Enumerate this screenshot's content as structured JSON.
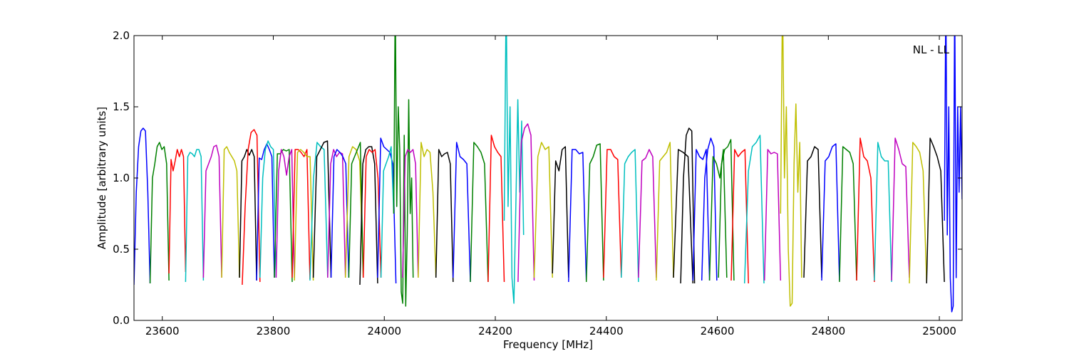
{
  "chart_data": {
    "type": "line",
    "title": "",
    "annotation": "NL - LL",
    "xlabel": "Frequency [MHz]",
    "ylabel": "Amplitude [arbitrary units]",
    "xlim": [
      23549,
      25041
    ],
    "ylim": [
      0.0,
      2.0
    ],
    "xticks": [
      23600,
      23800,
      24000,
      24200,
      24400,
      24600,
      24800,
      25000
    ],
    "xtick_labels": [
      "23600",
      "23800",
      "24000",
      "24200",
      "24400",
      "24600",
      "24800",
      "25000"
    ],
    "yticks": [
      0.0,
      0.5,
      1.0,
      1.5,
      2.0
    ],
    "ytick_labels": [
      "0.0",
      "0.5",
      "1.0",
      "1.5",
      "2.0"
    ],
    "grid": false,
    "colors": {
      "b": "#0000ff",
      "g": "#008000",
      "r": "#ff0000",
      "c": "#00bfbf",
      "m": "#bf00bf",
      "y": "#bfbf00",
      "k": "#000000"
    },
    "segments": [
      {
        "f0": 23549,
        "f1": 23578,
        "color": "b",
        "values": [
          0.25,
          0.9,
          1.22,
          1.33,
          1.35,
          1.33,
          0.9,
          0.26
        ]
      },
      {
        "f0": 23578,
        "f1": 23612,
        "color": "g",
        "values": [
          0.26,
          1.0,
          1.1,
          1.22,
          1.25,
          1.2,
          1.22,
          1.1,
          0.28
        ]
      },
      {
        "f0": 23612,
        "f1": 23642,
        "color": "r",
        "values": [
          0.33,
          1.13,
          1.05,
          1.12,
          1.2,
          1.15,
          1.2,
          1.15,
          0.34
        ]
      },
      {
        "f0": 23642,
        "f1": 23674,
        "color": "c",
        "values": [
          0.27,
          1.15,
          1.18,
          1.17,
          1.15,
          1.2,
          1.2,
          1.15,
          0.28
        ]
      },
      {
        "f0": 23674,
        "f1": 23707,
        "color": "m",
        "values": [
          0.3,
          1.05,
          1.1,
          1.15,
          1.22,
          1.23,
          1.15,
          0.3
        ]
      },
      {
        "f0": 23707,
        "f1": 23739,
        "color": "y",
        "values": [
          0.3,
          1.2,
          1.22,
          1.18,
          1.15,
          1.12,
          1.05,
          0.3
        ]
      },
      {
        "f0": 23739,
        "f1": 23770,
        "color": "k",
        "values": [
          0.3,
          1.12,
          1.15,
          1.2,
          1.16,
          1.2,
          1.15,
          0.28
        ]
      },
      {
        "f0": 23744,
        "f1": 23776,
        "color": "r",
        "values": [
          0.25,
          0.8,
          1.2,
          1.32,
          1.34,
          1.3,
          0.27
        ]
      },
      {
        "f0": 23770,
        "f1": 23802,
        "color": "b",
        "values": [
          0.28,
          1.14,
          1.13,
          1.2,
          1.24,
          1.2,
          1.15,
          0.3
        ]
      },
      {
        "f0": 23776,
        "f1": 23805,
        "color": "c",
        "values": [
          0.3,
          1.0,
          1.2,
          1.26,
          1.22,
          1.2,
          0.3
        ]
      },
      {
        "f0": 23802,
        "f1": 23834,
        "color": "g",
        "values": [
          0.3,
          1.17,
          1.17,
          1.2,
          1.19,
          1.2,
          0.27
        ]
      },
      {
        "f0": 23805,
        "f1": 23838,
        "color": "m",
        "values": [
          0.3,
          1.05,
          1.2,
          1.15,
          1.02,
          1.15,
          1.2,
          0.3
        ]
      },
      {
        "f0": 23834,
        "f1": 23866,
        "color": "r",
        "values": [
          0.3,
          1.2,
          1.2,
          1.18,
          1.15,
          1.2,
          0.29
        ]
      },
      {
        "f0": 23838,
        "f1": 23872,
        "color": "y",
        "values": [
          0.28,
          1.18,
          1.2,
          1.18,
          1.15,
          1.15,
          0.28
        ]
      },
      {
        "f0": 23866,
        "f1": 23898,
        "color": "c",
        "values": [
          0.28,
          1.0,
          1.25,
          1.22,
          1.2,
          0.3
        ]
      },
      {
        "f0": 23872,
        "f1": 23904,
        "color": "k",
        "values": [
          0.3,
          1.15,
          1.2,
          1.25,
          1.26,
          0.3
        ]
      },
      {
        "f0": 23898,
        "f1": 23930,
        "color": "m",
        "values": [
          0.3,
          1.1,
          1.2,
          1.15,
          1.18,
          1.17,
          0.3
        ]
      },
      {
        "f0": 23904,
        "f1": 23936,
        "color": "b",
        "values": [
          0.3,
          1.15,
          1.2,
          1.18,
          1.15,
          1.1,
          0.3
        ]
      },
      {
        "f0": 23930,
        "f1": 23962,
        "color": "y",
        "values": [
          0.3,
          1.15,
          1.22,
          1.2,
          1.12,
          0.3
        ]
      },
      {
        "f0": 23936,
        "f1": 23962,
        "color": "g",
        "values": [
          0.3,
          1.1,
          1.15,
          1.2,
          1.25,
          0.3
        ]
      },
      {
        "f0": 23956,
        "f1": 23988,
        "color": "k",
        "values": [
          0.25,
          1.1,
          1.2,
          1.22,
          1.22,
          1.1,
          0.26
        ]
      },
      {
        "f0": 23962,
        "f1": 23994,
        "color": "r",
        "values": [
          0.3,
          1.15,
          1.2,
          1.18,
          1.2,
          1.0,
          0.3
        ]
      },
      {
        "f0": 23988,
        "f1": 24021,
        "color": "b",
        "values": [
          0.3,
          1.28,
          1.22,
          1.2,
          1.18,
          1.1,
          0.26
        ]
      },
      {
        "f0": 23994,
        "f1": 24017,
        "color": "c",
        "values": [
          0.3,
          1.05,
          1.1,
          1.15,
          1.22,
          0.75
        ]
      },
      {
        "f0": 24017,
        "f1": 24052,
        "color": "g",
        "values": [
          0.75,
          2.3,
          0.8,
          1.5,
          1.2,
          0.2,
          0.12,
          1.3,
          0.1,
          0.6,
          1.55,
          0.75,
          1.0,
          0.3
        ]
      },
      {
        "f0": 24033,
        "f1": 24061,
        "color": "m",
        "values": [
          0.3,
          1.15,
          1.2,
          1.18,
          1.2,
          1.1,
          0.3
        ]
      },
      {
        "f0": 24061,
        "f1": 24093,
        "color": "y",
        "values": [
          0.3,
          1.25,
          1.15,
          1.2,
          1.18,
          0.9,
          0.3
        ]
      },
      {
        "f0": 24093,
        "f1": 24124,
        "color": "k",
        "values": [
          0.3,
          1.2,
          1.15,
          1.17,
          1.18,
          1.1,
          0.27
        ]
      },
      {
        "f0": 24124,
        "f1": 24155,
        "color": "b",
        "values": [
          0.3,
          1.25,
          1.15,
          1.13,
          1.1,
          0.27
        ]
      },
      {
        "f0": 24155,
        "f1": 24187,
        "color": "g",
        "values": [
          0.27,
          1.25,
          1.22,
          1.18,
          1.1,
          0.27
        ]
      },
      {
        "f0": 24187,
        "f1": 24216,
        "color": "r",
        "values": [
          0.27,
          1.3,
          1.22,
          1.18,
          1.15,
          0.27
        ]
      },
      {
        "f0": 24216,
        "f1": 24251,
        "color": "c",
        "values": [
          0.7,
          2.3,
          0.8,
          1.5,
          0.3,
          0.12,
          0.8,
          1.55,
          0.9,
          1.4,
          0.6
        ]
      },
      {
        "f0": 24241,
        "f1": 24270,
        "color": "m",
        "values": [
          0.27,
          1.25,
          1.35,
          1.38,
          1.3,
          0.28
        ]
      },
      {
        "f0": 24270,
        "f1": 24303,
        "color": "y",
        "values": [
          0.3,
          1.15,
          1.25,
          1.2,
          1.22,
          0.3
        ]
      },
      {
        "f0": 24303,
        "f1": 24332,
        "color": "k",
        "values": [
          0.33,
          1.12,
          1.05,
          1.2,
          1.22,
          0.3
        ]
      },
      {
        "f0": 24332,
        "f1": 24364,
        "color": "b",
        "values": [
          0.27,
          1.2,
          1.2,
          1.17,
          1.18,
          0.28
        ]
      },
      {
        "f0": 24364,
        "f1": 24395,
        "color": "g",
        "values": [
          0.27,
          1.1,
          1.15,
          1.23,
          1.24,
          0.28
        ]
      },
      {
        "f0": 24395,
        "f1": 24427,
        "color": "r",
        "values": [
          0.3,
          1.2,
          1.2,
          1.15,
          1.13,
          0.3
        ]
      },
      {
        "f0": 24427,
        "f1": 24458,
        "color": "c",
        "values": [
          0.3,
          1.1,
          1.15,
          1.18,
          1.2,
          0.27
        ]
      },
      {
        "f0": 24458,
        "f1": 24490,
        "color": "m",
        "values": [
          0.3,
          1.12,
          1.14,
          1.2,
          1.15,
          0.3
        ]
      },
      {
        "f0": 24490,
        "f1": 24521,
        "color": "y",
        "values": [
          0.28,
          1.12,
          1.15,
          1.18,
          1.25,
          0.3
        ]
      },
      {
        "f0": 24521,
        "f1": 24556,
        "color": "k",
        "values": [
          0.3,
          1.2,
          1.18,
          1.15,
          0.26
        ]
      },
      {
        "f0": 24534,
        "f1": 24559,
        "color": "k",
        "values": [
          0.26,
          1.0,
          1.3,
          1.35,
          1.33,
          0.26
        ]
      },
      {
        "f0": 24556,
        "f1": 24586,
        "color": "b",
        "values": [
          0.28,
          1.2,
          1.15,
          1.13,
          1.2,
          0.28
        ]
      },
      {
        "f0": 24572,
        "f1": 24599,
        "color": "b",
        "values": [
          0.28,
          1.0,
          1.2,
          1.28,
          1.22,
          0.28
        ]
      },
      {
        "f0": 24586,
        "f1": 24617,
        "color": "g",
        "values": [
          0.28,
          1.15,
          1.1,
          1.0,
          1.2,
          0.3
        ]
      },
      {
        "f0": 24602,
        "f1": 24630,
        "color": "g",
        "values": [
          0.3,
          1.1,
          1.2,
          1.22,
          1.27,
          0.28
        ]
      },
      {
        "f0": 24625,
        "f1": 24656,
        "color": "r",
        "values": [
          0.28,
          1.2,
          1.15,
          1.18,
          1.2,
          0.26
        ]
      },
      {
        "f0": 24649,
        "f1": 24684,
        "color": "c",
        "values": [
          0.26,
          1.05,
          1.22,
          1.25,
          1.3,
          0.26
        ]
      },
      {
        "f0": 24685,
        "f1": 24714,
        "color": "m",
        "values": [
          0.28,
          1.2,
          1.17,
          1.18,
          1.17,
          0.28
        ]
      },
      {
        "f0": 24714,
        "f1": 24752,
        "color": "y",
        "values": [
          0.75,
          2.3,
          1.0,
          1.5,
          0.5,
          0.1,
          0.12,
          1.1,
          1.52,
          0.9,
          1.25,
          0.3
        ]
      },
      {
        "f0": 24756,
        "f1": 24788,
        "color": "k",
        "values": [
          0.3,
          1.12,
          1.15,
          1.22,
          1.2,
          0.3
        ]
      },
      {
        "f0": 24788,
        "f1": 24820,
        "color": "b",
        "values": [
          0.28,
          1.12,
          1.15,
          1.22,
          1.24,
          0.28
        ]
      },
      {
        "f0": 24820,
        "f1": 24851,
        "color": "g",
        "values": [
          0.27,
          1.22,
          1.2,
          1.18,
          1.1,
          0.28
        ]
      },
      {
        "f0": 24851,
        "f1": 24883,
        "color": "r",
        "values": [
          0.28,
          1.28,
          1.15,
          1.12,
          1.0,
          0.27
        ]
      },
      {
        "f0": 24883,
        "f1": 24914,
        "color": "c",
        "values": [
          0.28,
          1.25,
          1.15,
          1.12,
          1.12,
          0.27
        ]
      },
      {
        "f0": 24914,
        "f1": 24946,
        "color": "m",
        "values": [
          0.28,
          1.28,
          1.2,
          1.1,
          1.08,
          0.3
        ]
      },
      {
        "f0": 24946,
        "f1": 24977,
        "color": "y",
        "values": [
          0.26,
          1.25,
          1.22,
          1.18,
          1.05,
          0.27
        ]
      },
      {
        "f0": 24977,
        "f1": 25009,
        "color": "k",
        "values": [
          0.26,
          1.28,
          1.22,
          1.15,
          1.05,
          0.27
        ]
      },
      {
        "f0": 25009,
        "f1": 25041,
        "color": "b",
        "values": [
          0.7,
          2.3,
          0.6,
          1.5,
          0.3,
          0.06,
          0.1,
          2.3,
          0.3,
          1.5,
          0.9,
          1.5,
          0.85
        ]
      }
    ]
  }
}
